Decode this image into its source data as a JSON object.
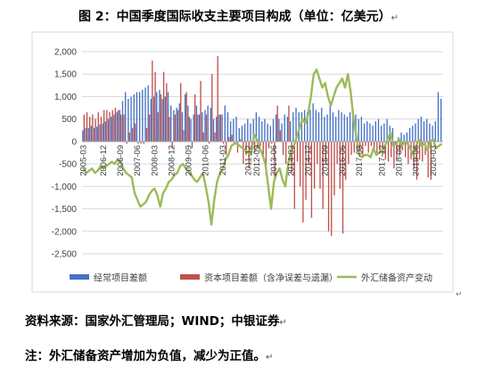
{
  "title": "图 2：中国季度国际收支主要项目构成（单位：亿美元）",
  "source": "资料来源：国家外汇管理局；WIND；中银证券",
  "footnote": "注：外汇储备资产增加为负值，减少为正值。",
  "colors": {
    "current_account": "#4472C4",
    "capital_account": "#C0504D",
    "reserve_change": "#9BBB59",
    "gridline": "#D9D9D9",
    "axis_text": "#404040"
  },
  "chart_data": {
    "type": "bar",
    "title": "",
    "xlabel": "",
    "ylabel": "",
    "ylim": [
      -2500,
      2000
    ],
    "yticks": [
      2000,
      1500,
      1000,
      500,
      0,
      -500,
      -1000,
      -1500,
      -2000,
      -2500
    ],
    "ytick_labels": [
      "2,000",
      "1,500",
      "1,000",
      "500",
      "0",
      "-500",
      "-1,000",
      "-1,500",
      "-2,000",
      "-2,500"
    ],
    "grid": true,
    "legend_position": "bottom",
    "x_labels": [
      {
        "index": 0,
        "text": "2005-03"
      },
      {
        "index": 7,
        "text": "2006-12"
      },
      {
        "index": 13,
        "text": "2006-09"
      },
      {
        "index": 19,
        "text": "2007-06"
      },
      {
        "index": 25,
        "text": "2008-03"
      },
      {
        "index": 31,
        "text": "2008-12"
      },
      {
        "index": 37,
        "text": "2009-09"
      },
      {
        "index": 43,
        "text": "2010-06"
      },
      {
        "index": 49,
        "text": "2011-03"
      },
      {
        "index": 58,
        "text": "2011-12"
      },
      {
        "index": 61,
        "text": "2012-09"
      },
      {
        "index": 67,
        "text": "2013-06"
      },
      {
        "index": 73,
        "text": "2014-03"
      },
      {
        "index": 79,
        "text": "2014-12"
      },
      {
        "index": 85,
        "text": "2015-09"
      },
      {
        "index": 91,
        "text": "2016-06"
      },
      {
        "index": 97,
        "text": "2017-03"
      },
      {
        "index": 105,
        "text": "2017-12"
      },
      {
        "index": 111,
        "text": "2018-09"
      },
      {
        "index": 117,
        "text": "2019-06"
      },
      {
        "index": 123,
        "text": "2020-03"
      }
    ],
    "series": [
      {
        "name": "经常项目差额",
        "type": "bar",
        "values": [
          250,
          300,
          300,
          350,
          300,
          330,
          380,
          400,
          450,
          500,
          550,
          600,
          650,
          700,
          900,
          1100,
          950,
          1000,
          1050,
          1100,
          1100,
          1150,
          1200,
          1250,
          950,
          1000,
          1100,
          1150,
          950,
          1000,
          1100,
          800,
          700,
          750,
          850,
          650,
          1050,
          800,
          500,
          600,
          800,
          600,
          650,
          700,
          800,
          750,
          500,
          550,
          600,
          600,
          800,
          650,
          450,
          500,
          550,
          300,
          350,
          400,
          500,
          400,
          500,
          650,
          550,
          450,
          500,
          400,
          350,
          500,
          600,
          500,
          400,
          600,
          550,
          450,
          650,
          750,
          650,
          650,
          700,
          650,
          700,
          850,
          700,
          650,
          750,
          550,
          600,
          850,
          650,
          550,
          700,
          650,
          600,
          550,
          650,
          700,
          600,
          500,
          550,
          400,
          450,
          400,
          350,
          450,
          500,
          350,
          400,
          500,
          350,
          300,
          -50,
          100,
          200,
          150,
          200,
          300,
          350,
          400,
          500,
          550,
          450,
          500,
          400,
          350,
          450,
          1100,
          950
        ],
        "color_key": "current_account"
      },
      {
        "name": "资本项目差额（含净误差与遗漏）",
        "type": "bar",
        "values": [
          600,
          650,
          550,
          600,
          500,
          650,
          550,
          700,
          700,
          650,
          700,
          750,
          700,
          600,
          600,
          -50,
          200,
          300,
          400,
          -50,
          -50,
          -50,
          300,
          600,
          1800,
          1550,
          650,
          1050,
          1550,
          1300,
          550,
          -150,
          600,
          700,
          1300,
          250,
          1100,
          550,
          -150,
          1050,
          600,
          1350,
          200,
          600,
          -50,
          1500,
          200,
          1900,
          600,
          -50,
          -300,
          100,
          150,
          -50,
          -250,
          50,
          -500,
          -300,
          -600,
          -200,
          -250,
          -150,
          -100,
          -300,
          -750,
          -150,
          -50,
          -800,
          800,
          250,
          -300,
          -500,
          800,
          -700,
          -1500,
          -450,
          -1000,
          -1800,
          -1300,
          -500,
          -1700,
          -1050,
          -500,
          -1050,
          -1500,
          -500,
          -2000,
          -2100,
          -1200,
          -500,
          -1050,
          -2050,
          -850,
          -500,
          -300,
          -250,
          -200,
          -200,
          -350,
          -100,
          -250,
          -100,
          -150,
          -250,
          -200,
          -300,
          -400,
          -450,
          -350,
          -600,
          -400,
          -300,
          -200,
          -350,
          -500,
          -400,
          -600,
          -850,
          -400,
          -450,
          -300,
          -800,
          -850
        ],
        "color_key": "capital_account"
      },
      {
        "name": "外汇储备资产变动",
        "type": "line",
        "values": [
          -600,
          -700,
          -650,
          -600,
          -700,
          -650,
          -550,
          -600,
          -550,
          -500,
          -450,
          -500,
          -400,
          -450,
          -600,
          -700,
          -750,
          -800,
          -1150,
          -1300,
          -1450,
          -1400,
          -1350,
          -1200,
          -1100,
          -1050,
          -1200,
          -1450,
          -1150,
          -1050,
          -900,
          -850,
          -750,
          -700,
          -550,
          -500,
          -600,
          -650,
          -750,
          -850,
          -900,
          -800,
          -700,
          -1000,
          -1350,
          -1850,
          -1300,
          -900,
          -700,
          -600,
          -400,
          -300,
          -100,
          -50,
          -50,
          -100,
          -150,
          -200,
          -250,
          -300,
          150,
          50,
          -150,
          -300,
          -500,
          -1000,
          -1500,
          -900,
          -700,
          -600,
          -850,
          -1000,
          -500,
          -200,
          -100,
          100,
          300,
          500,
          400,
          600,
          1000,
          1500,
          1600,
          1400,
          1200,
          1300,
          1000,
          800,
          1000,
          1200,
          1300,
          1400,
          1200,
          1500,
          1100,
          500,
          100,
          -300,
          -350,
          -300,
          -300,
          -350,
          -150,
          -300,
          -250,
          -200,
          -100,
          50,
          200,
          -100,
          -50,
          50,
          -100,
          0,
          -50,
          -150,
          -300,
          -100,
          50,
          -100,
          -50,
          -200,
          0,
          50,
          -150,
          -100,
          -50
        ]
      }
    ]
  },
  "legend": [
    {
      "label": "经常项目差额",
      "color_key": "current_account",
      "kind": "bar"
    },
    {
      "label": "资本项目差额（含净误差与遗漏）",
      "color_key": "capital_account",
      "kind": "bar"
    },
    {
      "label": "外汇储备资产变动",
      "color_key": "reserve_change",
      "kind": "line"
    }
  ]
}
